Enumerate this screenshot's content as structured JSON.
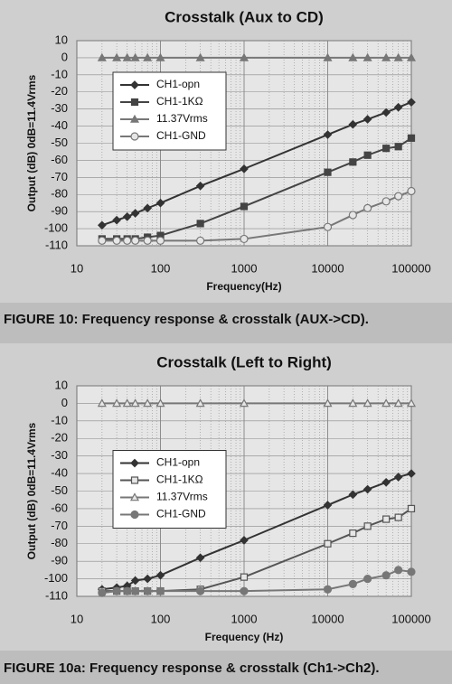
{
  "chart_data": [
    {
      "type": "line",
      "title": "Crosstalk (Aux to CD)",
      "x_label": "Frequency(Hz)",
      "y_label": "Output (dB) 0dB=11.4Vrms",
      "caption": "FIGURE 10: Frequency response & crosstalk (AUX->CD).",
      "log_x": true,
      "grid": true,
      "legend": "upper-left",
      "x": [
        20,
        30,
        40,
        50,
        70,
        100,
        300,
        1000,
        10000,
        20000,
        30000,
        50000,
        70000,
        100000
      ],
      "xlim": [
        10,
        100000
      ],
      "xticks": [
        10,
        100,
        1000,
        10000,
        100000
      ],
      "ylim": [
        -110,
        10
      ],
      "yticks": [
        10,
        0,
        -10,
        -20,
        -30,
        -40,
        -50,
        -60,
        -70,
        -80,
        -90,
        -100,
        -110
      ],
      "series": [
        {
          "name": "CH1-opn",
          "color": "#333333",
          "marker": "diamond",
          "values": [
            -98,
            -95,
            -93,
            -91,
            -88,
            -85,
            -75,
            -65,
            -45,
            -39,
            -36,
            -32,
            -29,
            -26
          ]
        },
        {
          "name": "CH1-1KΩ",
          "color": "#444444",
          "marker": "square",
          "values": [
            -106,
            -106,
            -106,
            -106,
            -105,
            -104,
            -97,
            -87,
            -67,
            -61,
            -57,
            -53,
            -52,
            -47
          ]
        },
        {
          "name": "11.37Vrms",
          "color": "#777777",
          "marker": "triangle",
          "values": [
            0,
            0,
            0,
            0,
            0,
            0,
            0,
            0,
            0,
            0,
            0,
            0,
            0,
            0
          ]
        },
        {
          "name": "CH1-GND",
          "color": "#777777",
          "marker": "circle-open",
          "values": [
            -107,
            -107,
            -107,
            -107,
            -107,
            -107,
            -107,
            -106,
            -99,
            -92,
            -88,
            -84,
            -81,
            -78
          ]
        }
      ]
    },
    {
      "type": "line",
      "title": "Crosstalk (Left to Right)",
      "x_label": "Frequency (Hz)",
      "y_label": "Output (dB) 0dB=11.4Vrms",
      "caption": "FIGURE 10a: Frequency response & crosstalk (Ch1->Ch2).",
      "log_x": true,
      "grid": true,
      "legend": "center-left",
      "x": [
        20,
        30,
        40,
        50,
        70,
        100,
        300,
        1000,
        10000,
        20000,
        30000,
        50000,
        70000,
        100000
      ],
      "xlim": [
        10,
        100000
      ],
      "xticks": [
        10,
        100,
        1000,
        10000,
        100000
      ],
      "ylim": [
        -110,
        10
      ],
      "yticks": [
        10,
        0,
        -10,
        -20,
        -30,
        -40,
        -50,
        -60,
        -70,
        -80,
        -90,
        -100,
        -110
      ],
      "series": [
        {
          "name": "CH1-opn",
          "color": "#333333",
          "marker": "diamond",
          "values": [
            -106,
            -105,
            -104,
            -101,
            -100,
            -98,
            -88,
            -78,
            -58,
            -52,
            -49,
            -45,
            -42,
            -40
          ]
        },
        {
          "name": "CH1-1KΩ",
          "color": "#555555",
          "marker": "square-open",
          "values": [
            -107,
            -107,
            -107,
            -107,
            -107,
            -107,
            -106,
            -99,
            -80,
            -74,
            -70,
            -66,
            -65,
            -60
          ]
        },
        {
          "name": "11.37Vrms",
          "color": "#777777",
          "marker": "triangle-open",
          "values": [
            0,
            0,
            0,
            0,
            0,
            0,
            0,
            0,
            0,
            0,
            0,
            0,
            0,
            0
          ]
        },
        {
          "name": "CH1-GND",
          "color": "#777777",
          "marker": "circle",
          "values": [
            -108,
            -107,
            -107,
            -107,
            -107,
            -107,
            -107,
            -107,
            -106,
            -103,
            -100,
            -98,
            -95,
            -96
          ]
        }
      ]
    }
  ]
}
